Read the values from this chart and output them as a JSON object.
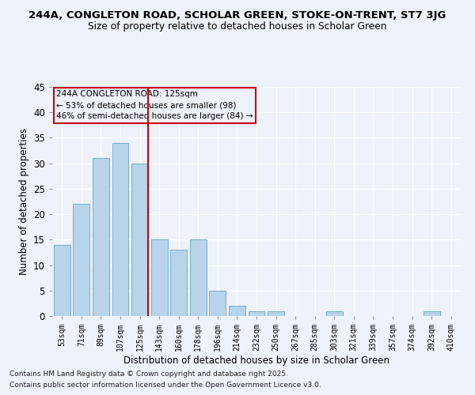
{
  "title1": "244A, CONGLETON ROAD, SCHOLAR GREEN, STOKE-ON-TRENT, ST7 3JG",
  "title2": "Size of property relative to detached houses in Scholar Green",
  "xlabel": "Distribution of detached houses by size in Scholar Green",
  "ylabel": "Number of detached properties",
  "categories": [
    "53sqm",
    "71sqm",
    "89sqm",
    "107sqm",
    "125sqm",
    "143sqm",
    "160sqm",
    "178sqm",
    "196sqm",
    "214sqm",
    "232sqm",
    "250sqm",
    "267sqm",
    "285sqm",
    "303sqm",
    "321sqm",
    "339sqm",
    "357sqm",
    "374sqm",
    "392sqm",
    "410sqm"
  ],
  "values": [
    14,
    22,
    31,
    34,
    30,
    15,
    13,
    15,
    5,
    2,
    1,
    1,
    0,
    0,
    1,
    0,
    0,
    0,
    0,
    1,
    0
  ],
  "bar_color": "#b8d4ea",
  "bar_edge_color": "#7aaece",
  "vline_x_index": 4,
  "vline_color": "#cc0000",
  "ylim": [
    0,
    45
  ],
  "yticks": [
    0,
    5,
    10,
    15,
    20,
    25,
    30,
    35,
    40,
    45
  ],
  "annotation_title": "244A CONGLETON ROAD: 125sqm",
  "annotation_line1": "← 53% of detached houses are smaller (98)",
  "annotation_line2": "46% of semi-detached houses are larger (84) →",
  "annotation_box_color": "#cc0000",
  "background_color": "#eef2fa",
  "grid_color": "#ffffff",
  "footer1": "Contains HM Land Registry data © Crown copyright and database right 2025.",
  "footer2": "Contains public sector information licensed under the Open Government Licence v3.0."
}
